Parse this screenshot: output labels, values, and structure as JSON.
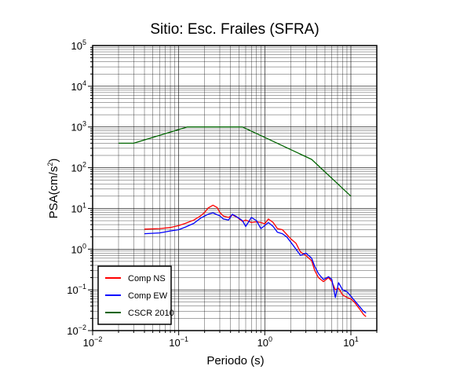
{
  "chart_data": {
    "type": "line",
    "title": "Sitio: Esc. Frailes (SFRA)",
    "xlabel": "Periodo (s)",
    "ylabel": "PSA(cm/s",
    "ylabel_exp": "2",
    "ylabel_close": ")",
    "x_scale": "log",
    "y_scale": "log",
    "xlim": [
      0.01,
      20
    ],
    "ylim": [
      0.01,
      100000
    ],
    "grid": true,
    "legend_position": "bottom-left",
    "x_ticks": [
      {
        "base": "10",
        "exp": "−2",
        "value": 0.01
      },
      {
        "base": "10",
        "exp": "−1",
        "value": 0.1
      },
      {
        "base": "10",
        "exp": "0",
        "value": 1
      },
      {
        "base": "10",
        "exp": "1",
        "value": 10
      }
    ],
    "y_ticks": [
      {
        "base": "10",
        "exp": "−2",
        "value": 0.01
      },
      {
        "base": "10",
        "exp": "−1",
        "value": 0.1
      },
      {
        "base": "10",
        "exp": "0",
        "value": 1
      },
      {
        "base": "10",
        "exp": "1",
        "value": 10
      },
      {
        "base": "10",
        "exp": "2",
        "value": 100
      },
      {
        "base": "10",
        "exp": "3",
        "value": 1000
      },
      {
        "base": "10",
        "exp": "4",
        "value": 10000
      },
      {
        "base": "10",
        "exp": "5",
        "value": 100000
      }
    ],
    "series": [
      {
        "name": "Comp NS",
        "color": "#ff0000",
        "points": [
          [
            0.04,
            3.1
          ],
          [
            0.06,
            3.2
          ],
          [
            0.08,
            3.4
          ],
          [
            0.1,
            3.8
          ],
          [
            0.12,
            4.3
          ],
          [
            0.15,
            5.2
          ],
          [
            0.18,
            6.6
          ],
          [
            0.2,
            8.0
          ],
          [
            0.22,
            10.3
          ],
          [
            0.25,
            12.0
          ],
          [
            0.28,
            10.5
          ],
          [
            0.3,
            8.0
          ],
          [
            0.33,
            6.5
          ],
          [
            0.38,
            6.0
          ],
          [
            0.42,
            7.0
          ],
          [
            0.48,
            6.0
          ],
          [
            0.55,
            4.8
          ],
          [
            0.6,
            5.2
          ],
          [
            0.7,
            4.5
          ],
          [
            0.8,
            4.7
          ],
          [
            0.9,
            4.5
          ],
          [
            1.0,
            4.2
          ],
          [
            1.1,
            5.5
          ],
          [
            1.25,
            4.5
          ],
          [
            1.4,
            3.2
          ],
          [
            1.6,
            3.0
          ],
          [
            1.8,
            2.3
          ],
          [
            2.0,
            1.8
          ],
          [
            2.3,
            1.4
          ],
          [
            2.6,
            0.85
          ],
          [
            3.0,
            0.7
          ],
          [
            3.5,
            0.52
          ],
          [
            3.8,
            0.3
          ],
          [
            4.2,
            0.2
          ],
          [
            4.8,
            0.16
          ],
          [
            5.5,
            0.2
          ],
          [
            6.0,
            0.16
          ],
          [
            6.6,
            0.1
          ],
          [
            7.2,
            0.11
          ],
          [
            8.0,
            0.075
          ],
          [
            9.0,
            0.065
          ],
          [
            10.0,
            0.06
          ],
          [
            11.0,
            0.05
          ],
          [
            12.5,
            0.035
          ],
          [
            14.0,
            0.025
          ],
          [
            15.0,
            0.022
          ]
        ]
      },
      {
        "name": "Comp EW",
        "color": "#0000ff",
        "points": [
          [
            0.04,
            2.4
          ],
          [
            0.06,
            2.5
          ],
          [
            0.08,
            2.8
          ],
          [
            0.1,
            3.0
          ],
          [
            0.12,
            3.5
          ],
          [
            0.15,
            4.3
          ],
          [
            0.18,
            5.8
          ],
          [
            0.2,
            6.5
          ],
          [
            0.22,
            7.2
          ],
          [
            0.25,
            7.8
          ],
          [
            0.28,
            7.0
          ],
          [
            0.3,
            6.6
          ],
          [
            0.33,
            5.5
          ],
          [
            0.38,
            5.2
          ],
          [
            0.42,
            7.2
          ],
          [
            0.48,
            6.1
          ],
          [
            0.55,
            5.0
          ],
          [
            0.6,
            3.6
          ],
          [
            0.7,
            6.0
          ],
          [
            0.8,
            5.0
          ],
          [
            0.9,
            3.2
          ],
          [
            1.0,
            3.8
          ],
          [
            1.1,
            4.5
          ],
          [
            1.25,
            3.6
          ],
          [
            1.4,
            2.6
          ],
          [
            1.6,
            2.4
          ],
          [
            1.8,
            2.0
          ],
          [
            2.0,
            1.5
          ],
          [
            2.3,
            1.0
          ],
          [
            2.6,
            0.7
          ],
          [
            3.0,
            0.8
          ],
          [
            3.5,
            0.6
          ],
          [
            3.8,
            0.38
          ],
          [
            4.2,
            0.25
          ],
          [
            4.8,
            0.18
          ],
          [
            5.5,
            0.21
          ],
          [
            6.0,
            0.18
          ],
          [
            6.6,
            0.065
          ],
          [
            7.2,
            0.15
          ],
          [
            8.0,
            0.1
          ],
          [
            9.0,
            0.09
          ],
          [
            10.0,
            0.07
          ],
          [
            11.0,
            0.055
          ],
          [
            12.5,
            0.04
          ],
          [
            14.0,
            0.03
          ],
          [
            15.0,
            0.027
          ]
        ]
      },
      {
        "name": "CSCR 2010",
        "color": "#006400",
        "points": [
          [
            0.02,
            400
          ],
          [
            0.03,
            400
          ],
          [
            0.125,
            1000
          ],
          [
            0.55,
            1000
          ],
          [
            3.5,
            160
          ],
          [
            10.0,
            20
          ]
        ]
      }
    ]
  }
}
